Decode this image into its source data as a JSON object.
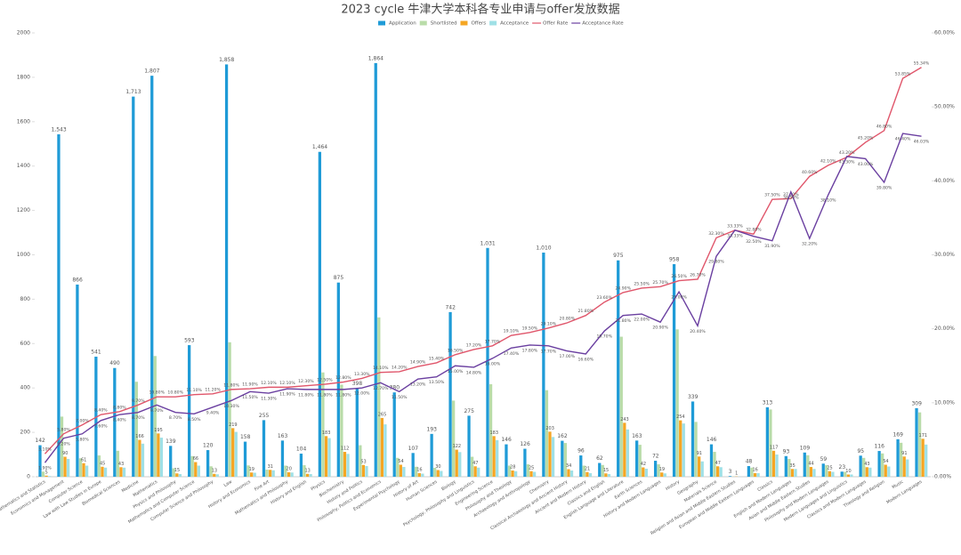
{
  "chart_data": {
    "type": "bar",
    "title": "2023 cycle 牛津大学本科各专业申请与offer发放数据",
    "categories": [
      "Mathematics and Statistics",
      "Economics and Management",
      "Computer Science",
      "Law with Law Studies in Europe",
      "Biomedical Sciences",
      "Medicine",
      "Mathematics",
      "Physics and Philosophy",
      "Mathematics and Computer Science",
      "Computer Science and Philosophy",
      "Law",
      "History and Economics",
      "Fine Art",
      "Mathematics and Philosophy",
      "History and English",
      "Physics",
      "Biochemistry",
      "History and Politics",
      "Philosophy, Politics and Economics",
      "Experimental Psychology",
      "History of Art",
      "Human Sciences",
      "Biology",
      "Psychology, Philosophy and Linguistics",
      "Engineering Science",
      "Philosophy and Theology",
      "Archaeology and Anthropology",
      "Chemistry",
      "Classical Archaeology and Ancient History",
      "Ancient and Modern History",
      "Classics and English",
      "English Language and Literature",
      "Earth Sciences",
      "History and Modern Languages",
      "History",
      "Geography",
      "Materials Science",
      "Religion and Asian and Middle Eastern Studies",
      "European and Middle Eastern Languages",
      "Classics",
      "English and Modern Languages",
      "Asian and Middle Eastern Studies",
      "Philosophy and Modern Languages",
      "Modern Languages and Linguistics",
      "Classics and Modern Languages",
      "Theology and Religion",
      "Music",
      "Modern Languages"
    ],
    "series": [
      {
        "name": "Application",
        "color": "#1f9bd7",
        "values": [
          142,
          1543,
          866,
          541,
          490,
          1713,
          1807,
          139,
          593,
          120,
          1858,
          158,
          255,
          163,
          104,
          1464,
          875,
          398,
          1864,
          380,
          107,
          193,
          742,
          275,
          1031,
          146,
          126,
          1010,
          162,
          96,
          62,
          975,
          163,
          72,
          958,
          339,
          146,
          3,
          48,
          313,
          93,
          109,
          59,
          23,
          95,
          116,
          169,
          309
        ],
        "value_labels": [
          "142",
          "1,543",
          "866",
          "541",
          "490",
          "1,713",
          "1,807",
          "139",
          "593",
          "120",
          "1,858",
          "158",
          "255",
          "163",
          "104",
          "1,464",
          "875",
          "398",
          "1,864",
          "380",
          "107",
          "193",
          "742",
          "275",
          "1,031",
          "146",
          "126",
          "1,010",
          "162",
          "96",
          "62",
          "975",
          "163",
          "72",
          "958",
          "339",
          "146",
          "3",
          "48",
          "313",
          "93",
          "109",
          "59",
          "23",
          "95",
          "116",
          "169",
          "309"
        ]
      },
      {
        "name": "Shortlisted",
        "color": "#b9dca8",
        "values": [
          23,
          271,
          83,
          96,
          117,
          428,
          544,
          38,
          93,
          47,
          606,
          51,
          32,
          50,
          52,
          470,
          415,
          142,
          718,
          85,
          45,
          40,
          343,
          90,
          417,
          50,
          56,
          390,
          152,
          50,
          53,
          631,
          144,
          56,
          664,
          247,
          112,
          1,
          41,
          303,
          80,
          97,
          52,
          22,
          85,
          105,
          153,
          290
        ]
      },
      {
        "name": "Offers",
        "color": "#f5a623",
        "values": [
          5,
          90,
          61,
          45,
          43,
          166,
          195,
          15,
          66,
          13,
          219,
          19,
          31,
          20,
          13,
          183,
          112,
          53,
          265,
          54,
          16,
          30,
          122,
          47,
          183,
          28,
          25,
          203,
          34,
          21,
          15,
          243,
          42,
          19,
          254,
          91,
          47,
          1,
          16,
          117,
          35,
          44,
          25,
          10,
          43,
          54,
          91,
          171
        ]
      },
      {
        "name": "Acceptance",
        "color": "#9fe0e6",
        "values": [
          3,
          80,
          50,
          41,
          41,
          149,
          176,
          12,
          50,
          11,
          202,
          18,
          29,
          19,
          12,
          174,
          103,
          48,
          236,
          44,
          14,
          26,
          111,
          41,
          165,
          25,
          22,
          179,
          28,
          16,
          12,
          213,
          36,
          15,
          240,
          69,
          43,
          1,
          16,
          100,
          35,
          35,
          22,
          10,
          41,
          46,
          78,
          145
        ]
      },
      {
        "name": "Offer Rate",
        "color": "#e0566b",
        "axis": "y2",
        "values": [
          3.1,
          5.8,
          7.0,
          8.4,
          8.8,
          9.7,
          10.8,
          10.8,
          11.1,
          11.2,
          11.8,
          11.9,
          12.1,
          12.1,
          12.3,
          12.5,
          12.8,
          13.3,
          14.1,
          14.2,
          14.9,
          15.4,
          16.5,
          17.2,
          17.7,
          19.1,
          19.5,
          20.1,
          20.8,
          21.8,
          23.6,
          24.9,
          25.5,
          25.7,
          26.5,
          26.7,
          32.3,
          33.33,
          32.8,
          37.5,
          37.6,
          40.6,
          42.1,
          43.2,
          45.2,
          46.8,
          53.85,
          55.34
        ],
        "value_labels": [
          "3.10%",
          "5.80%",
          "7.00%",
          "8.40%",
          "8.80%",
          "9.70%",
          "10.80%",
          "10.80%",
          "11.10%",
          "11.20%",
          "11.80%",
          "11.90%",
          "12.10%",
          "12.10%",
          "12.30%",
          "12.50%",
          "12.80%",
          "13.30%",
          "14.10%",
          "14.20%",
          "14.90%",
          "15.40%",
          "16.50%",
          "17.20%",
          "17.70%",
          "19.10%",
          "19.50%",
          "20.10%",
          "20.80%",
          "21.80%",
          "23.60%",
          "24.90%",
          "25.50%",
          "25.70%",
          "26.50%",
          "26.70%",
          "32.30%",
          "33.33%",
          "32.80%",
          "37.50%",
          "37.60%",
          "40.60%",
          "42.10%",
          "43.20%",
          "45.20%",
          "46.80%",
          "53.85%",
          "55.34%"
        ]
      },
      {
        "name": "Acceptance Rate",
        "color": "#6a3fa0",
        "axis": "y2",
        "values": [
          1.9,
          5.2,
          5.8,
          7.6,
          8.4,
          8.7,
          9.7,
          8.7,
          8.5,
          9.4,
          10.3,
          11.5,
          11.3,
          11.9,
          11.8,
          11.8,
          11.8,
          12.0,
          12.7,
          11.5,
          13.2,
          13.5,
          15.0,
          14.8,
          16.0,
          17.4,
          17.8,
          17.7,
          17.0,
          16.6,
          19.7,
          21.8,
          22.0,
          20.9,
          25.0,
          20.4,
          29.8,
          33.33,
          32.5,
          31.9,
          38.5,
          32.2,
          38.1,
          43.3,
          43.0,
          39.8,
          46.4,
          46.03
        ],
        "value_labels": [
          "1.90%",
          "5.20%",
          "5.80%",
          "7.60%",
          "8.40%",
          "8.70%",
          "9.70%",
          "8.70%",
          "8.50%",
          "9.40%",
          "10.30%",
          "11.50%",
          "11.30%",
          "11.90%",
          "11.80%",
          "11.80%",
          "11.80%",
          "12.00%",
          "12.70%",
          "11.50%",
          "13.20%",
          "13.50%",
          "15.00%",
          "14.80%",
          "16.00%",
          "17.40%",
          "17.80%",
          "17.70%",
          "17.00%",
          "16.60%",
          "19.70%",
          "21.80%",
          "22.00%",
          "20.90%",
          "25.00%",
          "20.40%",
          "29.80%",
          "33.33%",
          "32.50%",
          "31.90%",
          "38.50%",
          "32.20%",
          "38.10%",
          "43.30%",
          "43.00%",
          "39.80%",
          "46.40%",
          "46.03%"
        ]
      }
    ],
    "ylim": [
      0,
      2000
    ],
    "yticks": [
      0,
      200,
      400,
      600,
      800,
      1000,
      1200,
      1400,
      1600,
      1800,
      2000
    ],
    "y2lim": [
      0,
      60
    ],
    "y2ticks": [
      {
        "value": 0,
        "label": "0.00%"
      },
      {
        "value": 10,
        "label": "10.00%"
      },
      {
        "value": 20,
        "label": "20.00%"
      },
      {
        "value": 30,
        "label": "30.00%"
      },
      {
        "value": 40,
        "label": "40.00%"
      },
      {
        "value": 50,
        "label": "50.00%"
      },
      {
        "value": 60,
        "label": "60.00%"
      }
    ],
    "legend": "top",
    "grid": false
  }
}
